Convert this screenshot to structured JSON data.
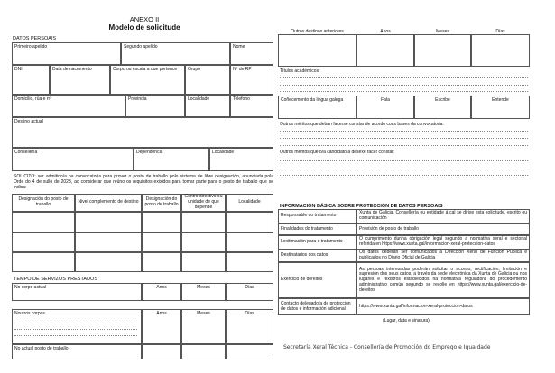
{
  "header": {
    "annex": "ANEXO II",
    "title": "Modelo de solicitude"
  },
  "personal": {
    "section": "DATOS PERSOAIS",
    "first_surname": "Primeiro apelido",
    "second_surname": "Segundo apelido",
    "name": "Nome",
    "dni": "DNI",
    "birth_date": "Data de nacemento",
    "corps": "Corpo ou escala a que pertence",
    "group": "Grupo",
    "nrp": "Nº de RP",
    "address": "Domicilio, rúa e nº",
    "province": "Provincia",
    "locality": "Localidade",
    "phone": "Telefono",
    "current_post": "Destino actual",
    "ministry": "Consellería",
    "dependency": "Dependencia",
    "locality2": "Localidade"
  },
  "request": {
    "text": "SOLICITO: ser admitido/a na convocatoria para prover o posto de traballo polo sistema de libre designación, anunciada pola Orde do 4 de xullo de 2023, ao considerar que reúno os requisitos exixidos para tomar parte para o posto de traballo que se indica:"
  },
  "posts_table": {
    "headers": [
      "Designación do posto de traballo",
      "Nivel complemento de destino",
      "Designación do posto de traballo",
      "Centro directivo ou unidade de que depende",
      "Localidade"
    ]
  },
  "service_time": {
    "section": "TEMPO DE SERVIZOS PRESTADOS",
    "current_corps": "No corpo actual",
    "other_corps": "Noutros corpos",
    "current_post": "No actual posto de traballo",
    "years": "Anos",
    "months": "Meses",
    "days": "Días"
  },
  "right": {
    "other_posts": "Outros destinos anteriores",
    "years": "Anos",
    "months": "Meses",
    "days": "Días",
    "degrees": "Títulos académicos:",
    "galician": "Coñecemento da lingua galega",
    "speaks": "Fala",
    "writes": "Escribe",
    "understands": "Entende",
    "merits_bases": "Outros méritos que deban facerse constar de acordo coas bases da convocatoria:",
    "merits_candidate": "Outros méritos que o/a candidato/a desexe facer constar:"
  },
  "privacy": {
    "section": "INFORMACIÓN BÁSICA SOBRE PROTECCIÓN DE DATOS PERSOAIS",
    "rows": [
      {
        "label": "Responsable do tratamento",
        "value": "Xunta de Galicia. Consellería ou entidade á cal se dirixe esta solicitude, escrito ou comunicación"
      },
      {
        "label": "Finalidades do tratamento",
        "value": "Provisión de posto de traballo"
      },
      {
        "label": "Lexitimación para o tratamento",
        "value": "O cumprimento dunha obrigación legal segundo a normativa xeral e sectorial referida en https://www.xunta.gal/informacion-xeral-proteccion-datos"
      },
      {
        "label": "Destinatarios dos datos",
        "value": "Os datos deberán ser comunicados á Dirección Xeral de Función Pública e publicados no Diario Oficial de Galicia"
      },
      {
        "label": "Exercicio de dereitos",
        "value": "As persoas interesadas poderán solicitar o acceso, rectificación, limitación e supresión dos seus datos, a través da sede electrónica da Xunta de Galicia ou nos lugares e rexistros establecidos na normativa reguladora do procedemento administrativo común segundo se recolle en https://www.xunta.gal/exercicio-de-dereitos"
      },
      {
        "label": "Contacto delegado/a de protección de datos e información adicional",
        "value": "https://www.xunta.gal/informacion-xeral-proteccion-datos"
      }
    ]
  },
  "signature": "(Lugar, data e sinatura)",
  "footer": "Secretaría Xeral Técnica - Consellería de Promoción do Emprego e Igualdade"
}
